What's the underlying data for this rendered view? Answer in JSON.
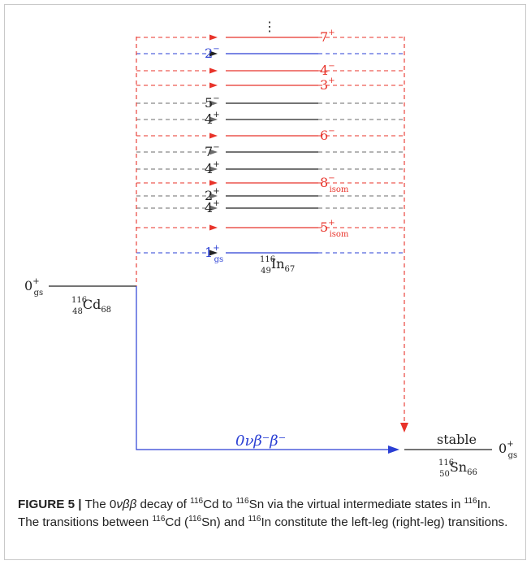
{
  "diagram": {
    "ellipsis": "⋮",
    "levels": [
      {
        "spin": "7",
        "parity": "+",
        "sub": "",
        "color": "red"
      },
      {
        "spin": "2",
        "parity": "−",
        "sub": "",
        "color": "blue"
      },
      {
        "spin": "4",
        "parity": "−",
        "sub": "",
        "color": "red"
      },
      {
        "spin": "3",
        "parity": "+",
        "sub": "",
        "color": "red"
      },
      {
        "spin": "5",
        "parity": "−",
        "sub": "",
        "color": "gray"
      },
      {
        "spin": "4",
        "parity": "+",
        "sub": "",
        "color": "gray"
      },
      {
        "spin": "6",
        "parity": "−",
        "sub": "",
        "color": "red"
      },
      {
        "spin": "7",
        "parity": "−",
        "sub": "",
        "color": "gray"
      },
      {
        "spin": "4",
        "parity": "+",
        "sub": "",
        "color": "gray"
      },
      {
        "spin": "8",
        "parity": "−",
        "sub": "isom",
        "color": "red"
      },
      {
        "spin": "2",
        "parity": "+",
        "sub": "",
        "color": "gray"
      },
      {
        "spin": "4",
        "parity": "+",
        "sub": "",
        "color": "gray"
      },
      {
        "spin": "5",
        "parity": "+",
        "sub": "isom",
        "color": "red"
      },
      {
        "spin": "1",
        "parity": "+",
        "sub": "gs",
        "color": "blue"
      }
    ],
    "intermediate_nucleus": {
      "A": "116",
      "Z": "49",
      "symbol": "In",
      "N": "67"
    },
    "parent": {
      "state": "0",
      "parity": "+",
      "sub": "gs",
      "A": "116",
      "Z": "48",
      "symbol": "Cd",
      "N": "68"
    },
    "daughter": {
      "state": "0",
      "parity": "+",
      "sub": "gs",
      "A": "116",
      "Z": "50",
      "symbol": "Sn",
      "N": "66",
      "label": "stable"
    },
    "decay_label": "0νβ⁻β⁻",
    "colors": {
      "red": "#e8332a",
      "blue": "#2a3fd4",
      "gray": "#6b6b6b",
      "black": "#222222"
    }
  },
  "caption": {
    "figure_label": "FIGURE 5 |",
    "text_parts": [
      "The 0",
      "νββ",
      " decay of ",
      "116",
      "Cd to ",
      "116",
      "Sn via the virtual intermediate states in ",
      "116",
      "In. The transitions between ",
      "116",
      "Cd (",
      "116",
      "Sn) and ",
      "116",
      "In constitute the left-leg (right-leg) transitions."
    ]
  }
}
